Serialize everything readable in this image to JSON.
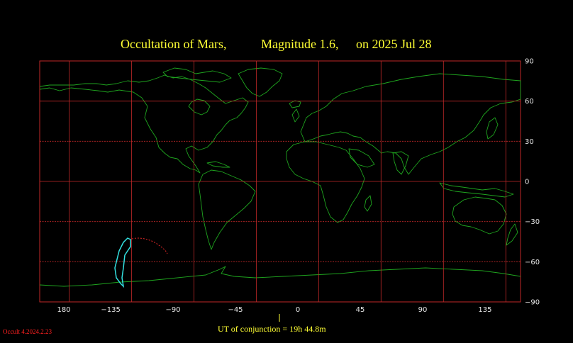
{
  "title": {
    "object": "Occultation  of  Mars,",
    "magnitude": "Magnitude 1.6,",
    "date": "on  2025 Jul 28"
  },
  "axes": {
    "lon_labels": [
      "180",
      "−135",
      "−90",
      "−45",
      "0",
      "45",
      "90",
      "135"
    ],
    "lat_labels": [
      "90",
      "60",
      "30",
      "0",
      "−30",
      "−60",
      "−90"
    ]
  },
  "footer": {
    "conjunction": "UT of conjunction = 19h 44.8m",
    "version": "Occult 4.2024.2.23"
  },
  "colors": {
    "background": "#000000",
    "title": "#ffff33",
    "grid": "#c02828",
    "coastline": "#1fa51f",
    "visibility_curve": "#33e0e0",
    "dotted_limit": "#e02828",
    "version_text": "#ff2020"
  }
}
